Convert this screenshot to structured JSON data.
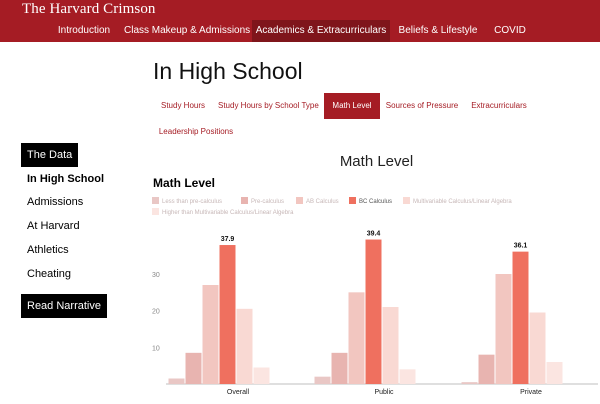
{
  "site": {
    "brand": "The Harvard Crimson"
  },
  "topnav": [
    {
      "label": "Introduction",
      "active": false
    },
    {
      "label": "Class Makeup & Admissions",
      "active": false
    },
    {
      "label": "Academics & Extracurriculars",
      "active": true
    },
    {
      "label": "Beliefs & Lifestyle",
      "active": false
    },
    {
      "label": "COVID",
      "active": false
    }
  ],
  "page": {
    "title": "In High School"
  },
  "subtabs": [
    {
      "label": "Study Hours",
      "active": false
    },
    {
      "label": "Study Hours by School Type",
      "active": false
    },
    {
      "label": "Math Level",
      "active": true
    },
    {
      "label": "Sources of Pressure",
      "active": false
    },
    {
      "label": "Extracurriculars",
      "active": false
    },
    {
      "label": "Leadership Positions",
      "active": false
    }
  ],
  "sidebar": {
    "data_button": "The Data",
    "links": [
      "In High School",
      "Admissions",
      "At Harvard",
      "Athletics",
      "Cheating"
    ],
    "narrative_button": "Read Narrative"
  },
  "section": {
    "heading": "Math Level"
  },
  "colors": {
    "brand": "#a51c24",
    "brand_dark": "#7f151b"
  },
  "chart_data": {
    "type": "bar",
    "title": "Math Level",
    "categories": [
      "Overall",
      "Public",
      "Private"
    ],
    "series": [
      {
        "name": "Less than pre-calculus",
        "color": "#e9c7c5",
        "values": [
          1.5,
          2,
          0.5
        ]
      },
      {
        "name": "Pre-calculus",
        "color": "#e8b4b0",
        "values": [
          8.5,
          8.5,
          8
        ]
      },
      {
        "name": "AB Calculus",
        "color": "#f2c6c0",
        "values": [
          27,
          25,
          30
        ]
      },
      {
        "name": "BC Calculus",
        "color": "#ef705f",
        "values": [
          37.9,
          39.4,
          36.1
        ]
      },
      {
        "name": "Multivariable Calculus/Linear Algebra",
        "color": "#f9d9d3",
        "values": [
          20.5,
          21,
          19.5
        ]
      },
      {
        "name": "Higher than Multivariable Calculus/Linear Algebra",
        "color": "#fbe5e1",
        "values": [
          4.5,
          4,
          6
        ]
      }
    ],
    "data_labels": {
      "series": "BC Calculus",
      "values": [
        "37.9",
        "39.4",
        "36.1"
      ]
    },
    "yticks": [
      "10",
      "20",
      "30"
    ],
    "ylim": [
      0,
      42
    ],
    "grid": false,
    "legend": "top-left"
  }
}
